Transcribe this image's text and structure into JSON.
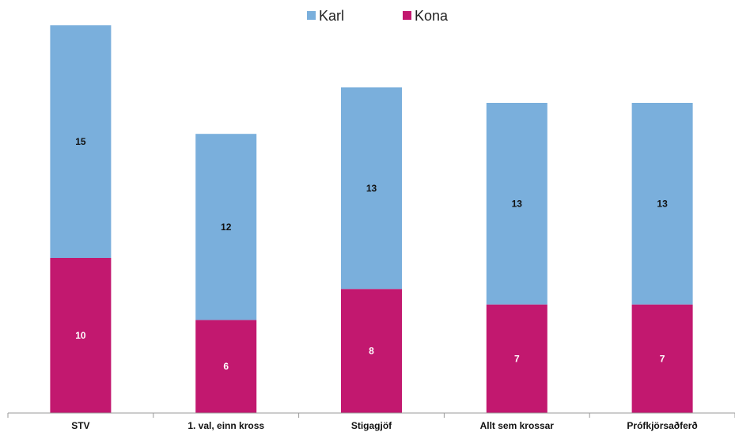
{
  "chart_data": {
    "type": "bar",
    "stacked": true,
    "categories": [
      "STV",
      "1. val, einn kross",
      "Stigagjöf",
      "Allt sem krossar",
      "Prófkjörsaðferð"
    ],
    "series": [
      {
        "name": "Kona",
        "values": [
          10,
          6,
          8,
          7,
          7
        ],
        "color": "#C2186F",
        "label_color": "#ffffff"
      },
      {
        "name": "Karl",
        "values": [
          15,
          12,
          13,
          13,
          13
        ],
        "color": "#7AAFDC",
        "label_color": "#111111"
      }
    ],
    "legend": {
      "position": "top-center",
      "order": [
        "Karl",
        "Kona"
      ]
    },
    "ylim": [
      0,
      25
    ],
    "grid": false,
    "title": "",
    "xlabel": "",
    "ylabel": ""
  }
}
